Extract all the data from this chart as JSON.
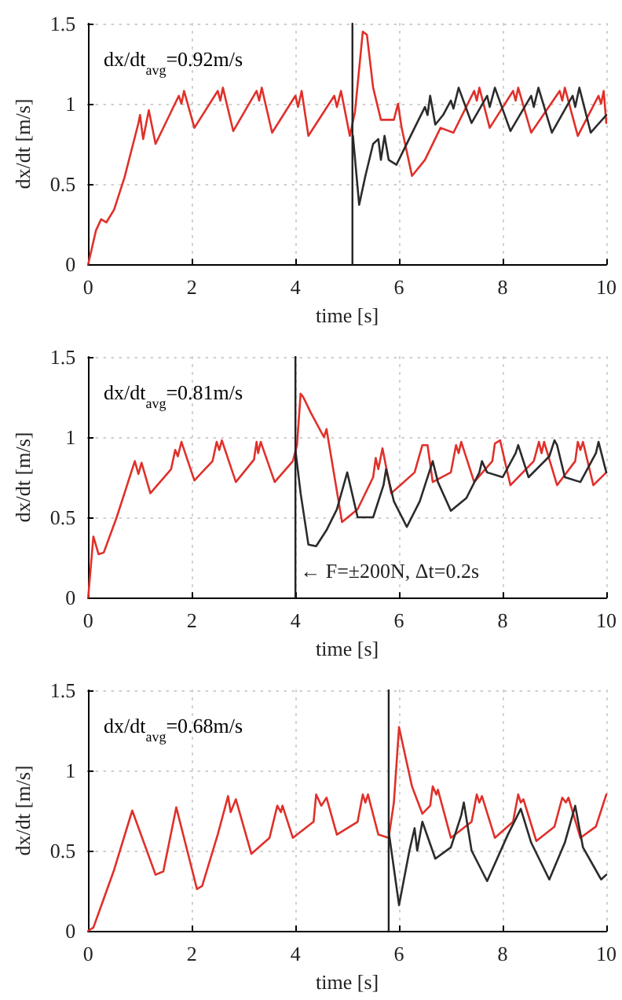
{
  "chart_data": [
    {
      "type": "line",
      "xlabel": "time [s]",
      "ylabel": "dx/dt [m/s]",
      "annotations": [
        "dx/dt$_{avg}$=0.92m/s"
      ],
      "xlim": [
        0,
        10
      ],
      "xticks": [
        0,
        2,
        4,
        6,
        8,
        10
      ],
      "ylim": [
        0,
        1.5
      ],
      "yticks": [
        0,
        0.5,
        1,
        1.5
      ],
      "grid": true,
      "line_style": "solid",
      "marker": "none",
      "ref_lines": [
        {
          "axis": "x",
          "value": 5.1,
          "color": "#222222"
        }
      ],
      "series": [
        {
          "color": "#e0302a",
          "x": [
            0,
            0.15,
            0.25,
            0.35,
            0.5,
            0.7,
            0.97,
            1.0,
            1.06,
            1.17,
            1.3,
            1.75,
            1.8,
            1.85,
            2.05,
            2.5,
            2.55,
            2.6,
            2.8,
            3.25,
            3.3,
            3.35,
            3.55,
            4.0,
            4.05,
            4.12,
            4.25,
            4.75,
            4.8,
            4.88,
            5.05,
            5.15,
            5.3,
            5.38,
            5.5,
            5.65,
            5.9,
            5.98,
            6.05,
            6.25,
            6.5,
            6.8,
            7.05,
            7.45,
            7.5,
            7.55,
            7.75,
            8.2,
            8.25,
            8.3,
            8.55,
            9.1,
            9.15,
            9.2,
            9.45,
            9.85,
            9.9,
            9.95,
            10
          ],
          "values": [
            0,
            0.21,
            0.28,
            0.26,
            0.34,
            0.54,
            0.88,
            0.93,
            0.78,
            0.96,
            0.75,
            1.05,
            1.0,
            1.08,
            0.85,
            1.08,
            1.02,
            1.1,
            0.83,
            1.08,
            1.02,
            1.1,
            0.82,
            1.05,
            0.98,
            1.08,
            0.8,
            1.05,
            0.98,
            1.08,
            0.8,
            0.95,
            1.45,
            1.43,
            1.1,
            0.9,
            0.9,
            1.0,
            0.85,
            0.55,
            0.65,
            0.85,
            0.82,
            1.08,
            1.02,
            1.1,
            0.85,
            1.08,
            1.02,
            1.1,
            0.82,
            1.08,
            1.02,
            1.1,
            0.8,
            1.05,
            1.0,
            1.08,
            0.88
          ]
        },
        {
          "color": "#2b2b2b",
          "x": [
            5.11,
            5.23,
            5.35,
            5.5,
            5.6,
            5.65,
            5.72,
            5.8,
            5.95,
            6.3,
            6.5,
            6.55,
            6.6,
            6.7,
            6.85,
            7.0,
            7.05,
            7.15,
            7.4,
            7.7,
            7.75,
            7.85,
            8.15,
            8.55,
            8.6,
            8.69,
            8.95,
            9.35,
            9.4,
            9.48,
            9.7,
            10
          ],
          "values": [
            0.8,
            0.37,
            0.55,
            0.75,
            0.78,
            0.65,
            0.8,
            0.65,
            0.62,
            0.85,
            0.98,
            0.93,
            1.05,
            0.87,
            0.93,
            1.02,
            0.97,
            1.1,
            0.88,
            1.05,
            0.98,
            1.1,
            0.83,
            1.05,
            0.98,
            1.1,
            0.82,
            1.05,
            0.98,
            1.1,
            0.82,
            0.93
          ]
        }
      ]
    },
    {
      "type": "line",
      "xlabel": "time [s]",
      "ylabel": "dx/dt [m/s]",
      "annotations": [
        "dx/dt$_{avg}$=0.81m/s",
        {
          "text": "← F=±200N, Δt=0.2s",
          "x": 4.0,
          "y": 0.15
        }
      ],
      "xlim": [
        0,
        10
      ],
      "xticks": [
        0,
        2,
        4,
        6,
        8,
        10
      ],
      "ylim": [
        0,
        1.5
      ],
      "yticks": [
        0,
        0.5,
        1,
        1.5
      ],
      "grid": true,
      "line_style": "solid",
      "marker": "none",
      "ref_lines": [
        {
          "axis": "x",
          "value": 4.0,
          "color": "#222222"
        }
      ],
      "series": [
        {
          "color": "#e0302a",
          "x": [
            0,
            0.1,
            0.2,
            0.3,
            0.55,
            0.9,
            0.97,
            1.03,
            1.2,
            1.6,
            1.68,
            1.73,
            1.8,
            2.05,
            2.4,
            2.48,
            2.53,
            2.58,
            2.85,
            3.2,
            3.25,
            3.28,
            3.33,
            3.6,
            3.95,
            4.03,
            4.1,
            4.15,
            4.3,
            4.55,
            4.6,
            4.9,
            5.2,
            5.5,
            5.55,
            5.6,
            5.68,
            5.85,
            6.3,
            6.45,
            6.55,
            6.65,
            7.0,
            7.1,
            7.15,
            7.2,
            7.45,
            7.8,
            7.85,
            7.95,
            8.15,
            8.6,
            8.7,
            8.75,
            8.8,
            9.05,
            9.4,
            9.45,
            9.5,
            9.55,
            9.75,
            10
          ],
          "values": [
            0,
            0.38,
            0.27,
            0.28,
            0.5,
            0.85,
            0.77,
            0.84,
            0.65,
            0.8,
            0.92,
            0.88,
            0.97,
            0.73,
            0.85,
            0.97,
            0.92,
            0.98,
            0.72,
            0.86,
            0.97,
            0.9,
            0.97,
            0.72,
            0.85,
            0.95,
            1.27,
            1.25,
            1.15,
            1.0,
            1.05,
            0.47,
            0.55,
            0.75,
            0.87,
            0.8,
            0.93,
            0.65,
            0.78,
            0.95,
            0.95,
            0.72,
            0.78,
            0.95,
            0.9,
            0.97,
            0.72,
            0.85,
            0.96,
            0.98,
            0.7,
            0.85,
            0.97,
            0.9,
            0.97,
            0.7,
            0.85,
            0.97,
            0.92,
            0.97,
            0.7,
            0.78
          ]
        },
        {
          "color": "#2b2b2b",
          "x": [
            4.0,
            4.1,
            4.25,
            4.4,
            4.6,
            4.8,
            5.0,
            5.2,
            5.5,
            5.7,
            5.75,
            5.9,
            6.15,
            6.4,
            6.6,
            6.65,
            6.75,
            7.0,
            7.3,
            7.55,
            7.6,
            7.7,
            8.0,
            8.25,
            8.3,
            8.5,
            8.9,
            9.0,
            9.05,
            9.2,
            9.5,
            9.8,
            9.85,
            10
          ],
          "values": [
            0.92,
            0.65,
            0.33,
            0.32,
            0.42,
            0.55,
            0.78,
            0.5,
            0.5,
            0.7,
            0.8,
            0.6,
            0.44,
            0.6,
            0.8,
            0.85,
            0.72,
            0.54,
            0.62,
            0.78,
            0.85,
            0.78,
            0.75,
            0.9,
            0.95,
            0.75,
            0.88,
            0.98,
            0.95,
            0.75,
            0.72,
            0.9,
            0.97,
            0.78
          ]
        }
      ]
    },
    {
      "type": "line",
      "xlabel": "time [s]",
      "ylabel": "dx/dt [m/s]",
      "annotations": [
        "dx/dt$_{avg}$=0.68m/s"
      ],
      "xlim": [
        0,
        10
      ],
      "xticks": [
        0,
        2,
        4,
        6,
        8,
        10
      ],
      "ylim": [
        0,
        1.5
      ],
      "yticks": [
        0,
        0.5,
        1,
        1.5
      ],
      "grid": true,
      "line_style": "solid",
      "marker": "none",
      "ref_lines": [
        {
          "axis": "x",
          "value": 5.8,
          "color": "#222222"
        }
      ],
      "series": [
        {
          "color": "#e0302a",
          "x": [
            0,
            0.1,
            0.3,
            0.5,
            0.85,
            1.3,
            1.45,
            1.7,
            2.1,
            2.2,
            2.5,
            2.7,
            2.75,
            2.85,
            3.15,
            3.5,
            3.65,
            3.72,
            3.75,
            3.95,
            4.35,
            4.4,
            4.5,
            4.6,
            4.8,
            5.2,
            5.3,
            5.35,
            5.4,
            5.6,
            5.8,
            5.9,
            6.0,
            6.1,
            6.25,
            6.45,
            6.6,
            6.65,
            6.72,
            6.75,
            7.0,
            7.4,
            7.5,
            7.55,
            7.6,
            7.85,
            8.2,
            8.3,
            8.35,
            8.4,
            8.65,
            9.0,
            9.15,
            9.22,
            9.27,
            9.5,
            9.8,
            10
          ],
          "values": [
            0,
            0.02,
            0.2,
            0.38,
            0.75,
            0.35,
            0.37,
            0.77,
            0.26,
            0.28,
            0.6,
            0.84,
            0.74,
            0.82,
            0.48,
            0.58,
            0.78,
            0.74,
            0.78,
            0.58,
            0.68,
            0.85,
            0.78,
            0.83,
            0.6,
            0.68,
            0.85,
            0.8,
            0.85,
            0.6,
            0.58,
            0.8,
            1.27,
            1.12,
            0.9,
            0.73,
            0.78,
            0.9,
            0.85,
            0.88,
            0.58,
            0.68,
            0.85,
            0.8,
            0.84,
            0.58,
            0.68,
            0.85,
            0.8,
            0.82,
            0.56,
            0.65,
            0.83,
            0.8,
            0.83,
            0.58,
            0.65,
            0.85
          ]
        },
        {
          "color": "#2b2b2b",
          "x": [
            5.8,
            6.0,
            6.2,
            6.3,
            6.35,
            6.45,
            6.7,
            7.0,
            7.2,
            7.25,
            7.4,
            7.7,
            8.1,
            8.35,
            8.55,
            8.9,
            9.2,
            9.4,
            9.55,
            9.9,
            10
          ],
          "values": [
            0.62,
            0.16,
            0.5,
            0.64,
            0.5,
            0.68,
            0.45,
            0.52,
            0.72,
            0.8,
            0.5,
            0.31,
            0.6,
            0.76,
            0.55,
            0.32,
            0.55,
            0.78,
            0.52,
            0.32,
            0.35
          ]
        }
      ]
    }
  ]
}
